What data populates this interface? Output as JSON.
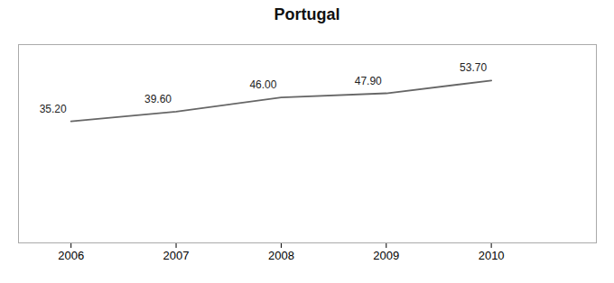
{
  "chart_data": {
    "type": "line",
    "title": "Portugal",
    "x": [
      2006,
      2007,
      2008,
      2009,
      2010
    ],
    "values": [
      35.2,
      39.6,
      46.0,
      47.9,
      53.7
    ],
    "value_labels": [
      "35.20",
      "39.60",
      "46.00",
      "47.90",
      "53.70"
    ],
    "color": "#666666",
    "xlim": [
      2005.5,
      2011.0
    ],
    "xticks": [
      2006,
      2007,
      2008,
      2009,
      2010
    ],
    "ylim": [
      -20,
      70
    ],
    "data_labels": true,
    "tick_labels": "x",
    "grid": false
  }
}
